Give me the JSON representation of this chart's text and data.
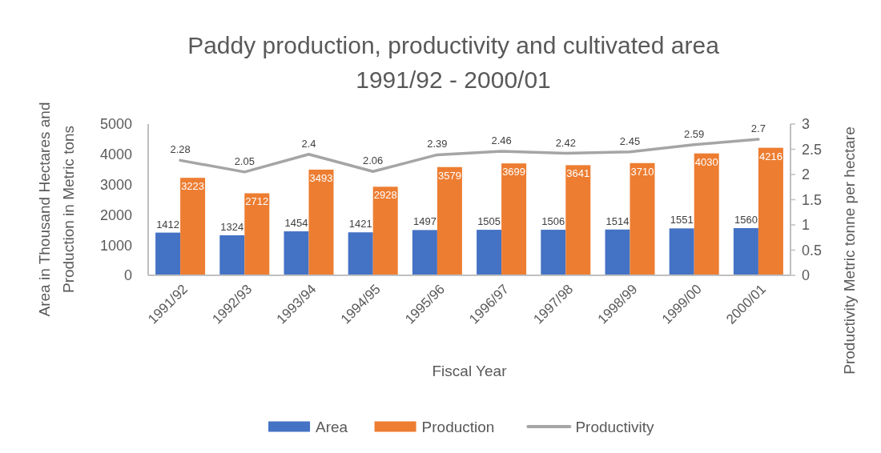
{
  "chart_data": {
    "type": "bar",
    "title": "Paddy production, productivity and cultivated area 1991/92 - 2000/01",
    "xlabel": "Fiscal Year",
    "ylabel": "Area in Thousand Hectares and Production in Metric tons",
    "y2label": "Productivity Metric tonne per hectare",
    "categories": [
      "1991/92",
      "1992/93",
      "1993/94",
      "1994/95",
      "1995/96",
      "1996/97",
      "1997/98",
      "1998/99",
      "1999/00",
      "2000/01"
    ],
    "series": [
      {
        "name": "Area",
        "color": "#4472c4",
        "values": [
          1412,
          1324,
          1454,
          1421,
          1497,
          1505,
          1506,
          1514,
          1551,
          1560
        ]
      },
      {
        "name": "Production",
        "color": "#ed7d31",
        "values": [
          3223,
          2712,
          3493,
          2928,
          3579,
          3699,
          3641,
          3710,
          4030,
          4216
        ]
      },
      {
        "name": "Productivity",
        "type": "line",
        "axis": "y2",
        "color": "#a5a5a5",
        "values": [
          2.28,
          2.05,
          2.4,
          2.06,
          2.39,
          2.46,
          2.42,
          2.45,
          2.59,
          2.7
        ]
      }
    ],
    "ylim": [
      0,
      5000
    ],
    "yticks": [
      0,
      1000,
      2000,
      3000,
      4000,
      5000
    ],
    "y2lim": [
      0,
      3
    ],
    "y2ticks": [
      0,
      0.5,
      1,
      1.5,
      2,
      2.5,
      3
    ],
    "data_labels": true,
    "legend": "bottom"
  }
}
